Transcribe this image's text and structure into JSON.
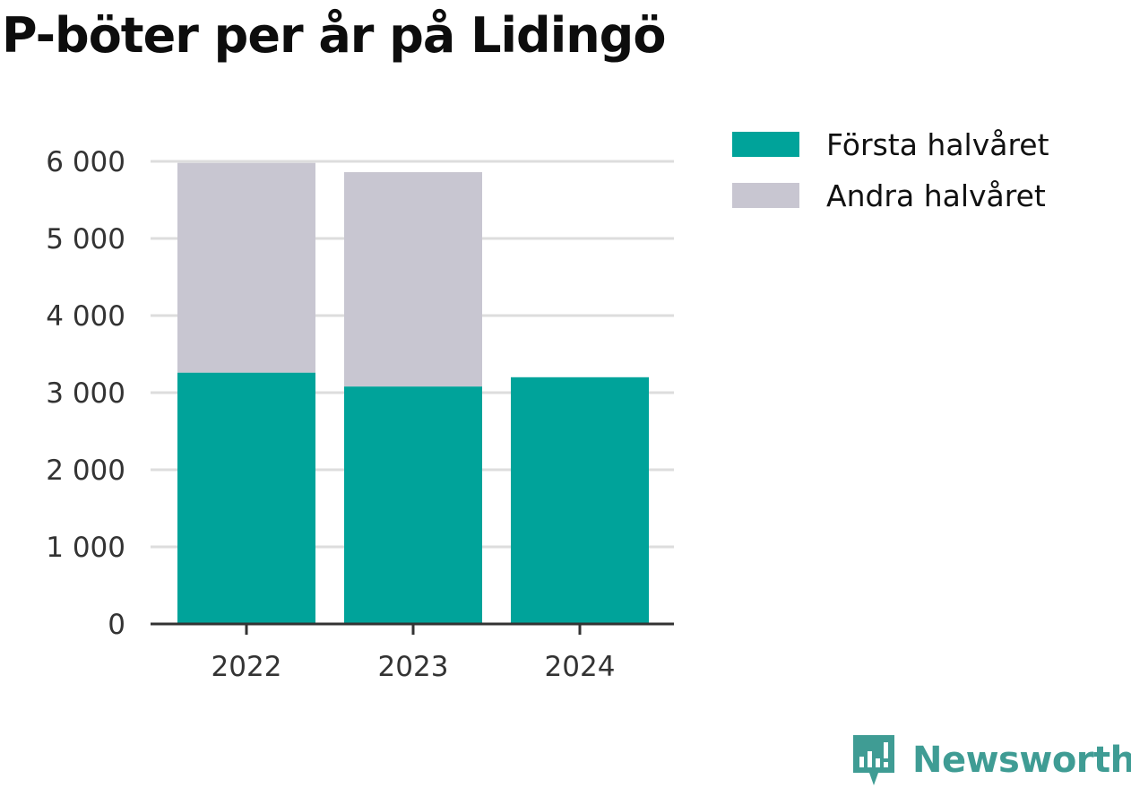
{
  "title": "P-böter per år på Lidingö",
  "brand": {
    "name": "Newsworthy",
    "icon": "newsworthy-logo-icon",
    "color": "#3f9c94"
  },
  "colors": {
    "series1": "#00a39a",
    "series2": "#c8c6d1",
    "grid": "#dddddd",
    "axis": "#333333"
  },
  "chart_data": {
    "type": "bar",
    "stacked": true,
    "title": "P-böter per år på Lidingö",
    "categories": [
      "2022",
      "2023",
      "2024"
    ],
    "series": [
      {
        "name": "Första halvåret",
        "values": [
          3260,
          3080,
          3200
        ]
      },
      {
        "name": "Andra halvåret",
        "values": [
          2720,
          2780,
          0
        ]
      }
    ],
    "ylim": [
      0,
      6000
    ],
    "yticks": [
      0,
      1000,
      2000,
      3000,
      4000,
      5000,
      6000
    ],
    "ytick_labels": [
      "0",
      "1 000",
      "2 000",
      "3 000",
      "4 000",
      "5 000",
      "6 000"
    ],
    "grid": true,
    "legend": "top-right"
  }
}
